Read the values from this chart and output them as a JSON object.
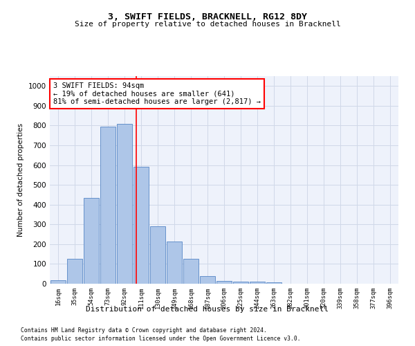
{
  "title": "3, SWIFT FIELDS, BRACKNELL, RG12 8DY",
  "subtitle": "Size of property relative to detached houses in Bracknell",
  "xlabel": "Distribution of detached houses by size in Bracknell",
  "ylabel": "Number of detached properties",
  "bar_labels": [
    "16sqm",
    "35sqm",
    "54sqm",
    "73sqm",
    "92sqm",
    "111sqm",
    "130sqm",
    "149sqm",
    "168sqm",
    "187sqm",
    "206sqm",
    "225sqm",
    "244sqm",
    "263sqm",
    "282sqm",
    "301sqm",
    "320sqm",
    "339sqm",
    "358sqm",
    "377sqm",
    "396sqm"
  ],
  "all_bar_values": [
    18,
    125,
    435,
    795,
    810,
    590,
    290,
    212,
    125,
    40,
    15,
    10,
    10,
    8,
    0,
    0,
    0,
    0,
    0,
    0,
    0
  ],
  "bar_color": "#aec6e8",
  "bar_edge_color": "#5585c5",
  "grid_color": "#d0d8e8",
  "bg_color": "#eef2fb",
  "vline_x_index": 4.7,
  "vline_color": "red",
  "annotation_text": "3 SWIFT FIELDS: 94sqm\n← 19% of detached houses are smaller (641)\n81% of semi-detached houses are larger (2,817) →",
  "annotation_box_color": "white",
  "annotation_box_edge": "red",
  "ylim": [
    0,
    1050
  ],
  "yticks": [
    0,
    100,
    200,
    300,
    400,
    500,
    600,
    700,
    800,
    900,
    1000
  ],
  "footnote1": "Contains HM Land Registry data © Crown copyright and database right 2024.",
  "footnote2": "Contains public sector information licensed under the Open Government Licence v3.0."
}
